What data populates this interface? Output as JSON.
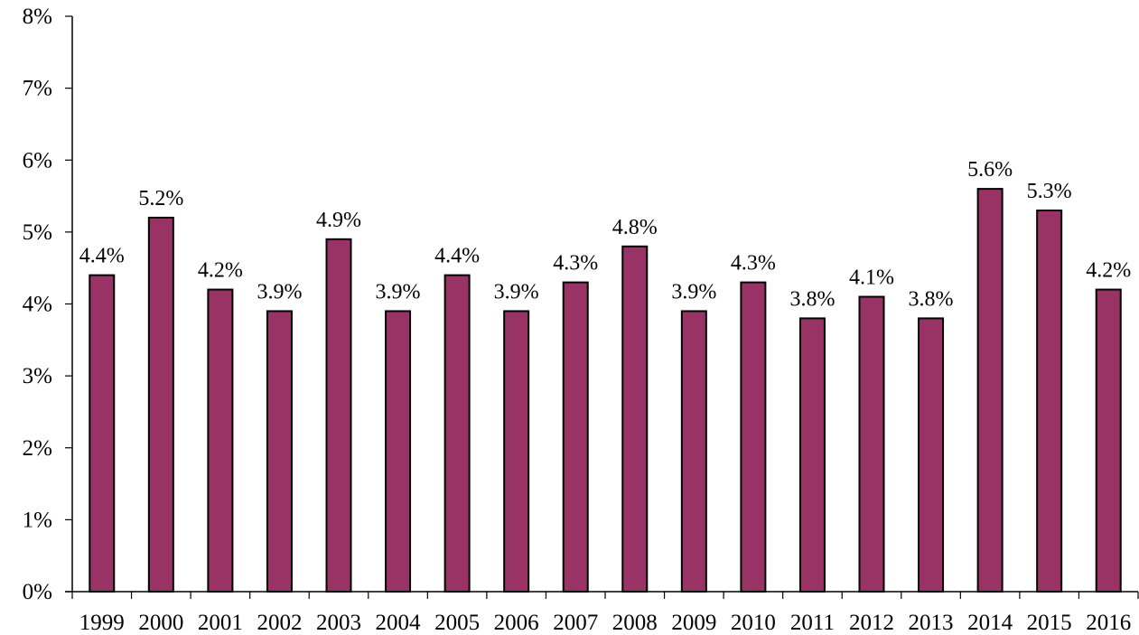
{
  "chart_data": {
    "type": "bar",
    "title": "",
    "xlabel": "",
    "ylabel": "",
    "categories": [
      "1999",
      "2000",
      "2001",
      "2002",
      "2003",
      "2004",
      "2005",
      "2006",
      "2007",
      "2008",
      "2009",
      "2010",
      "2011",
      "2012",
      "2013",
      "2014",
      "2015",
      "2016"
    ],
    "values": [
      4.4,
      5.2,
      4.2,
      3.9,
      4.9,
      3.9,
      4.4,
      3.9,
      4.3,
      4.8,
      3.9,
      4.3,
      3.8,
      4.1,
      3.8,
      5.6,
      5.3,
      4.2
    ],
    "data_labels": [
      "4.4%",
      "5.2%",
      "4.2%",
      "3.9%",
      "4.9%",
      "3.9%",
      "4.4%",
      "3.9%",
      "4.3%",
      "4.8%",
      "3.9%",
      "4.3%",
      "3.8%",
      "4.1%",
      "3.8%",
      "5.6%",
      "5.3%",
      "4.2%"
    ],
    "ylim": [
      0,
      8
    ],
    "y_ticks": [
      0,
      1,
      2,
      3,
      4,
      5,
      6,
      7,
      8
    ],
    "y_tick_labels": [
      "0%",
      "1%",
      "2%",
      "3%",
      "4%",
      "5%",
      "6%",
      "7%",
      "8%"
    ],
    "grid": false,
    "legend": "none",
    "colors": {
      "bar_fill": "#993366",
      "bar_outline": "#000000",
      "axis": "#000000",
      "text": "#000000"
    }
  }
}
